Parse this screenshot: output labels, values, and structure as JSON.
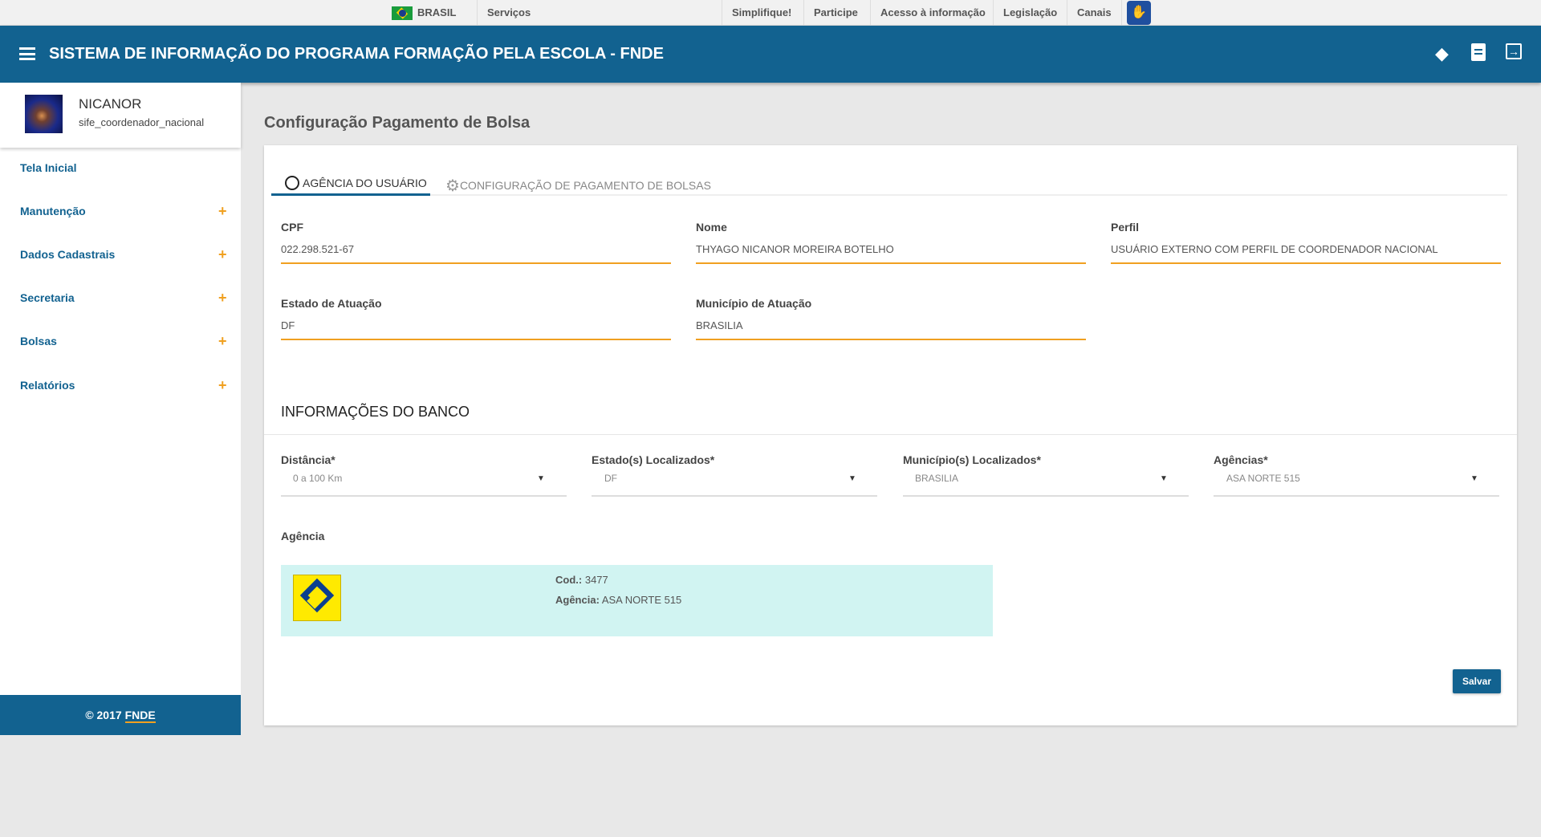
{
  "topbar": {
    "country": "BRASIL",
    "services": "Serviços",
    "links": [
      "Simplifique!",
      "Participe",
      "Acesso à informação",
      "Legislação",
      "Canais"
    ]
  },
  "header": {
    "title": "SISTEMA DE INFORMAÇÃO DO PROGRAMA FORMAÇÃO PELA ESCOLA - FNDE"
  },
  "user": {
    "name": "NICANOR",
    "role": "sife_coordenador_nacional"
  },
  "sidebar": {
    "items": [
      {
        "label": "Tela Inicial"
      },
      {
        "label": "Manutenção",
        "expand": "+"
      },
      {
        "label": "Dados Cadastrais",
        "expand": "+"
      },
      {
        "label": "Secretaria",
        "expand": "+"
      },
      {
        "label": "Bolsas",
        "expand": "+"
      },
      {
        "label": "Relatórios",
        "expand": "+"
      }
    ]
  },
  "footer": {
    "copyright": "© 2017",
    "link": "FNDE"
  },
  "page": {
    "title": "Configuração Pagamento de Bolsa"
  },
  "tabs": [
    {
      "label": "AGÊNCIA DO USUÁRIO",
      "active": true
    },
    {
      "label": "CONFIGURAÇÃO DE PAGAMENTO DE BOLSAS",
      "active": false
    }
  ],
  "fields": {
    "cpf": {
      "label": "CPF",
      "value": "022.298.521-67"
    },
    "nome": {
      "label": "Nome",
      "value": "THYAGO NICANOR MOREIRA BOTELHO"
    },
    "perfil": {
      "label": "Perfil",
      "value": "USUÁRIO EXTERNO COM PERFIL DE COORDENADOR NACIONAL"
    },
    "estado": {
      "label": "Estado de Atuação",
      "value": "DF"
    },
    "municipio": {
      "label": "Município de Atuação",
      "value": "BRASILIA"
    }
  },
  "bank": {
    "section_title": "INFORMAÇÕES DO BANCO",
    "selects": [
      {
        "label": "Distância*",
        "value": "0 a 100 Km"
      },
      {
        "label": "Estado(s) Localizados*",
        "value": "DF"
      },
      {
        "label": "Município(s) Localizados*",
        "value": "BRASILIA"
      },
      {
        "label": "Agências*",
        "value": "ASA NORTE 515"
      }
    ],
    "agency_label": "Agência",
    "agency": {
      "cod_label": "Cod.:",
      "cod": "3477",
      "name_label": "Agência:",
      "name": "ASA NORTE 515"
    }
  },
  "actions": {
    "save": "Salvar"
  },
  "colors": {
    "primary": "#126290",
    "accent": "#f0a020",
    "agency_bg": "#d1f4f2"
  }
}
